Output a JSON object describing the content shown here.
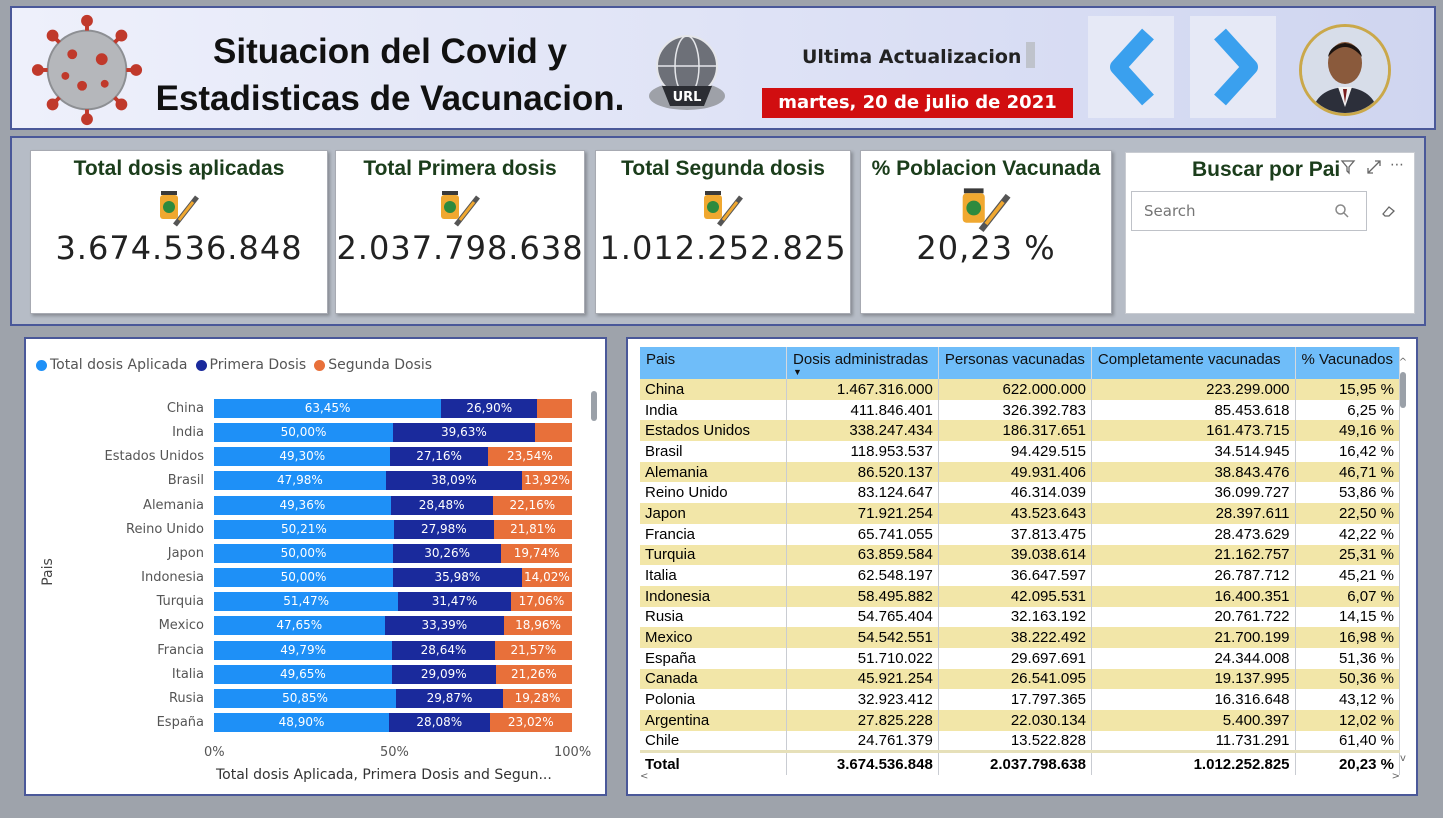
{
  "header": {
    "title_line1": "Situacion del Covid y",
    "title_line2": "Estadisticas de Vacunacion.",
    "globe_label": "URL",
    "update_label": "Ultima Actualizacion",
    "update_date": "martes, 20 de julio de 2021"
  },
  "kpis": [
    {
      "title": "Total dosis aplicadas",
      "value": "3.674.536.848"
    },
    {
      "title": "Total Primera dosis",
      "value": "2.037.798.638"
    },
    {
      "title": "Total Segunda dosis",
      "value": "1.012.252.825"
    },
    {
      "title": "% Poblacion Vacunada",
      "value": "20,23 %"
    }
  ],
  "search": {
    "title": "Buscar por Pais",
    "placeholder": "Search"
  },
  "chart_data": {
    "type": "bar",
    "orientation": "horizontal",
    "stacked": "100%",
    "categories": [
      "China",
      "India",
      "Estados Unidos",
      "Brasil",
      "Alemania",
      "Reino Unido",
      "Japon",
      "Indonesia",
      "Turquia",
      "Mexico",
      "Francia",
      "Italia",
      "Rusia",
      "España"
    ],
    "series": [
      {
        "name": "Total dosis Aplicada",
        "color": "#1e90f7",
        "values": [
          63.45,
          50.0,
          49.3,
          47.98,
          49.36,
          50.21,
          50.0,
          50.0,
          51.47,
          47.65,
          49.79,
          49.65,
          50.85,
          48.9
        ],
        "labels": [
          "63,45%",
          "50,00%",
          "49,30%",
          "47,98%",
          "49,36%",
          "50,21%",
          "50,00%",
          "50,00%",
          "51,47%",
          "47,65%",
          "49,79%",
          "49,65%",
          "50,85%",
          "48,90%"
        ]
      },
      {
        "name": "Primera Dosis",
        "color": "#1a2a9c",
        "values": [
          26.9,
          39.63,
          27.16,
          38.09,
          28.48,
          27.98,
          30.26,
          35.98,
          31.47,
          33.39,
          28.64,
          29.09,
          29.87,
          28.08
        ],
        "labels": [
          "26,90%",
          "39,63%",
          "27,16%",
          "38,09%",
          "28,48%",
          "27,98%",
          "30,26%",
          "35,98%",
          "31,47%",
          "33,39%",
          "28,64%",
          "29,09%",
          "29,87%",
          "28,08%"
        ]
      },
      {
        "name": "Segunda Dosis",
        "color": "#e8703a",
        "values": [
          9.65,
          10.37,
          23.54,
          13.92,
          22.16,
          21.81,
          19.74,
          14.02,
          17.06,
          18.96,
          21.57,
          21.26,
          19.28,
          23.02
        ],
        "labels": [
          "",
          "",
          "23,54%",
          "13,92%",
          "22,16%",
          "21,81%",
          "19,74%",
          "14,02%",
          "17,06%",
          "18,96%",
          "21,57%",
          "21,26%",
          "19,28%",
          "23,02%"
        ]
      }
    ],
    "ylabel": "Pais",
    "xlabel": "Total dosis Aplicada, Primera Dosis and Segun...",
    "xticks": [
      "0%",
      "50%",
      "100%"
    ],
    "xlim": [
      0,
      100
    ]
  },
  "table": {
    "columns": [
      "Pais",
      "Dosis administradas",
      "Personas vacunadas",
      "Completamente vacunadas",
      "% Vacunados"
    ],
    "rows": [
      [
        "China",
        "1.467.316.000",
        "622.000.000",
        "223.299.000",
        "15,95 %"
      ],
      [
        "India",
        "411.846.401",
        "326.392.783",
        "85.453.618",
        "6,25 %"
      ],
      [
        "Estados Unidos",
        "338.247.434",
        "186.317.651",
        "161.473.715",
        "49,16 %"
      ],
      [
        "Brasil",
        "118.953.537",
        "94.429.515",
        "34.514.945",
        "16,42 %"
      ],
      [
        "Alemania",
        "86.520.137",
        "49.931.406",
        "38.843.476",
        "46,71 %"
      ],
      [
        "Reino Unido",
        "83.124.647",
        "46.314.039",
        "36.099.727",
        "53,86 %"
      ],
      [
        "Japon",
        "71.921.254",
        "43.523.643",
        "28.397.611",
        "22,50 %"
      ],
      [
        "Francia",
        "65.741.055",
        "37.813.475",
        "28.473.629",
        "42,22 %"
      ],
      [
        "Turquia",
        "63.859.584",
        "39.038.614",
        "21.162.757",
        "25,31 %"
      ],
      [
        "Italia",
        "62.548.197",
        "36.647.597",
        "26.787.712",
        "45,21 %"
      ],
      [
        "Indonesia",
        "58.495.882",
        "42.095.531",
        "16.400.351",
        "6,07 %"
      ],
      [
        "Rusia",
        "54.765.404",
        "32.163.192",
        "20.761.722",
        "14,15 %"
      ],
      [
        "Mexico",
        "54.542.551",
        "38.222.492",
        "21.700.199",
        "16,98 %"
      ],
      [
        "España",
        "51.710.022",
        "29.697.691",
        "24.344.008",
        "51,36 %"
      ],
      [
        "Canada",
        "45.921.254",
        "26.541.095",
        "19.137.995",
        "50,36 %"
      ],
      [
        "Polonia",
        "32.923.412",
        "17.797.365",
        "16.316.648",
        "43,12 %"
      ],
      [
        "Argentina",
        "27.825.228",
        "22.030.134",
        "5.400.397",
        "12,02 %"
      ],
      [
        "Chile",
        "24.761.379",
        "13.522.828",
        "11.731.291",
        "61,40 %"
      ]
    ],
    "total": [
      "Total",
      "3.674.536.848",
      "2.037.798.638",
      "1.012.252.825",
      "20,23 %"
    ]
  }
}
